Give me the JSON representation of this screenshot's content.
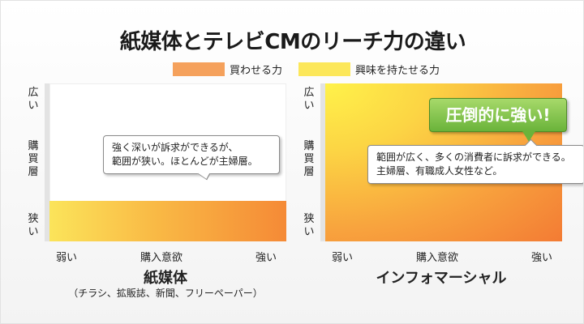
{
  "title": "紙媒体とテレビCMのリーチ力の違い",
  "legend": [
    {
      "label": "買わせる力",
      "color": "#f5a15c"
    },
    {
      "label": "興味を持たせる力",
      "color": "#fce75a"
    }
  ],
  "axes": {
    "y_top": "広い",
    "y_mid": "購買層",
    "y_bottom": "狭い",
    "x_left": "弱い",
    "x_center": "購入意欲",
    "x_right": "強い"
  },
  "panels": {
    "left": {
      "title": "紙媒体",
      "subtitle": "（チラシ、拡販誌、新聞、フリーペーパー）",
      "callout_line1": "強く深いが訴求ができるが、",
      "callout_line2": "範囲が狭い。ほとんどが主婦層。",
      "fill_fraction": 0.26
    },
    "right": {
      "title": "インフォマーシャル",
      "badge": "圧倒的に強い!",
      "callout_line1": "範囲が広く、多くの消費者に訴求ができる。",
      "callout_line2": "主婦層、有職成人女性など。",
      "fill_fraction": 1.0
    }
  }
}
